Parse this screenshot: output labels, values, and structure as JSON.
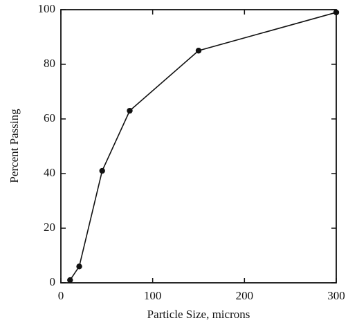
{
  "chart_data": {
    "type": "line",
    "x_label": "Particle Size, microns",
    "y_label": "Percent Passing",
    "x": [
      10,
      20,
      45,
      75,
      150,
      300
    ],
    "series": [
      {
        "color": "#111111",
        "values": [
          1,
          6,
          41,
          63,
          85,
          99
        ]
      }
    ],
    "xlim": [
      0,
      300
    ],
    "xticks": [
      0,
      100,
      200,
      300
    ],
    "ylim": [
      0,
      100
    ],
    "yticks": [
      0,
      20,
      40,
      60,
      80,
      100
    ],
    "grid": false
  }
}
